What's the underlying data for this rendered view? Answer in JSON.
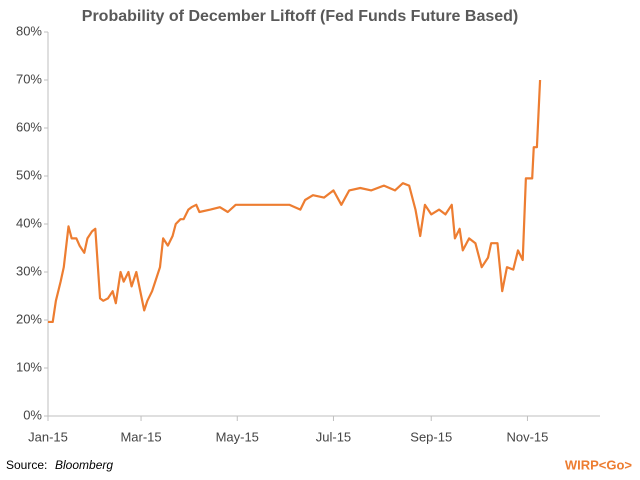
{
  "chart_data": {
    "type": "line",
    "title": "Probability of December Liftoff (Fed Funds Future Based)",
    "source_label": "Source:",
    "source": "Bloomberg",
    "footnote": "WIRP<Go>",
    "x": [
      0,
      3,
      5,
      8,
      10,
      13,
      15,
      18,
      20,
      23,
      25,
      28,
      30,
      33,
      35,
      38,
      41,
      43,
      46,
      48,
      51,
      53,
      56,
      61,
      63,
      66,
      68,
      71,
      73,
      76,
      79,
      81,
      84,
      86,
      89,
      91,
      94,
      96,
      103,
      109,
      114,
      119,
      128,
      141,
      153,
      160,
      163,
      168,
      175,
      181,
      186,
      191,
      198,
      205,
      213,
      220,
      225,
      229,
      233,
      236,
      239,
      243,
      248,
      252,
      256,
      258,
      261,
      263,
      267,
      271,
      275,
      279,
      281,
      285,
      288,
      291,
      295,
      298,
      301,
      303,
      307,
      308,
      310,
      312
    ],
    "series": [
      {
        "name": "Probability",
        "color": "#ed7d31",
        "values": [
          19.6,
          19.6,
          24,
          28,
          31,
          39.5,
          37,
          37,
          35.5,
          34,
          37,
          38.5,
          39,
          24.5,
          24,
          24.5,
          26,
          23.5,
          30,
          28,
          30,
          27,
          30,
          22,
          24,
          26,
          28,
          31,
          37,
          35.5,
          37.5,
          40,
          41,
          41,
          43,
          43.5,
          44,
          42.5,
          43,
          43.5,
          42.5,
          44,
          44,
          44,
          44,
          43,
          45,
          46,
          45.5,
          47,
          44,
          47,
          47.5,
          47,
          48,
          47,
          48.5,
          48,
          43,
          37.5,
          44,
          42,
          43,
          42,
          44,
          37,
          39,
          34.5,
          37,
          36,
          31,
          33,
          36,
          36,
          26,
          31,
          30.5,
          34.5,
          32.5,
          49.5,
          49.5,
          56,
          56,
          70
        ]
      }
    ],
    "xlim": [
      0,
      350
    ],
    "xticks": [
      {
        "value": 0,
        "label": "Jan-15"
      },
      {
        "value": 59,
        "label": "Mar-15"
      },
      {
        "value": 120,
        "label": "May-15"
      },
      {
        "value": 181,
        "label": "Jul-15"
      },
      {
        "value": 243,
        "label": "Sep-15"
      },
      {
        "value": 304,
        "label": "Nov-15"
      }
    ],
    "ylim": [
      0,
      80
    ],
    "yticks": [
      {
        "value": 0,
        "label": "0%"
      },
      {
        "value": 10,
        "label": "10%"
      },
      {
        "value": 20,
        "label": "20%"
      },
      {
        "value": 30,
        "label": "30%"
      },
      {
        "value": 40,
        "label": "40%"
      },
      {
        "value": 50,
        "label": "50%"
      },
      {
        "value": 60,
        "label": "60%"
      },
      {
        "value": 70,
        "label": "70%"
      },
      {
        "value": 80,
        "label": "80%"
      }
    ],
    "grid": false
  }
}
